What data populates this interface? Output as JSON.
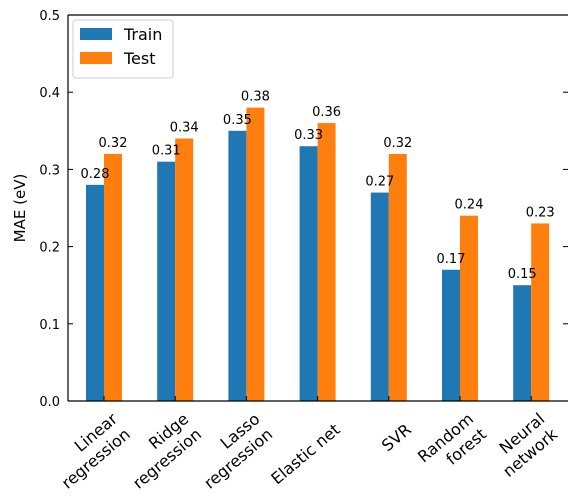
{
  "chart_data": {
    "type": "bar",
    "title": "",
    "xlabel": "",
    "ylabel": "MAE (eV)",
    "ylim": [
      0,
      0.5
    ],
    "yticks": [
      "0.0",
      "0.1",
      "0.2",
      "0.3",
      "0.4",
      "0.5"
    ],
    "categories": [
      [
        "Linear",
        "regression"
      ],
      [
        "Ridge",
        "regression"
      ],
      [
        "Lasso",
        "regression"
      ],
      [
        "Elastic net"
      ],
      [
        "SVR"
      ],
      [
        "Random",
        "forest"
      ],
      [
        "Neural",
        "network"
      ]
    ],
    "series": [
      {
        "name": "Train",
        "color": "#1f77b4",
        "values": [
          0.28,
          0.31,
          0.35,
          0.33,
          0.27,
          0.17,
          0.15
        ],
        "labels": [
          "0.28",
          "0.31",
          "0.35",
          "0.33",
          "0.27",
          "0.17",
          "0.15"
        ]
      },
      {
        "name": "Test",
        "color": "#ff7f0e",
        "values": [
          0.32,
          0.34,
          0.38,
          0.36,
          0.32,
          0.24,
          0.23
        ],
        "labels": [
          "0.32",
          "0.34",
          "0.38",
          "0.36",
          "0.32",
          "0.24",
          "0.23"
        ]
      }
    ],
    "legend": {
      "position": "top-left",
      "entries": [
        "Train",
        "Test"
      ]
    },
    "grid": false
  }
}
